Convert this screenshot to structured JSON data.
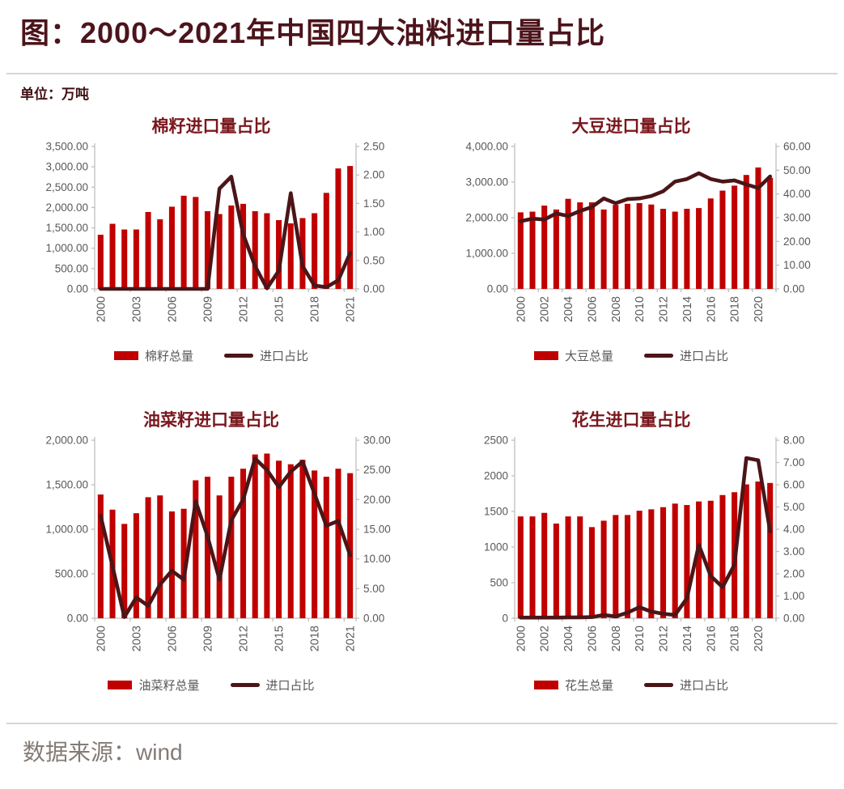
{
  "page": {
    "title": "图：2000～2021年中国四大油料进口量占比",
    "unit_label": "单位：万吨",
    "source_label": "数据来源：wind"
  },
  "colors": {
    "bar": "#C00000",
    "line": "#4C1518",
    "main_title": "#4C141B",
    "chart_title": "#7A171D",
    "axis_line": "#BFBFBF",
    "axis_text": "#595959",
    "legend_text": "#595959",
    "footer_text": "#847B76",
    "divider": "#D8D5D3"
  },
  "chart_data": [
    {
      "type": "bar+line",
      "title": "棉籽进口量占比",
      "categories": [
        "2000",
        "2001",
        "2002",
        "2003",
        "2004",
        "2005",
        "2006",
        "2007",
        "2008",
        "2009",
        "2010",
        "2011",
        "2012",
        "2013",
        "2014",
        "2015",
        "2016",
        "2017",
        "2018",
        "2019",
        "2020",
        "2021"
      ],
      "bar_series": {
        "name": "棉籽总量",
        "axis": "left",
        "values": [
          1330,
          1600,
          1460,
          1460,
          1890,
          1710,
          2020,
          2290,
          2260,
          1910,
          1840,
          2050,
          2090,
          1910,
          1860,
          1690,
          1610,
          1740,
          1860,
          2360,
          2960,
          3020
        ]
      },
      "line_series": {
        "name": "进口占比",
        "axis": "right",
        "values": [
          0.0,
          0.0,
          0.0,
          0.0,
          0.0,
          0.0,
          0.0,
          0.0,
          0.0,
          0.0,
          1.76,
          1.97,
          0.96,
          0.4,
          0.01,
          0.32,
          1.68,
          0.4,
          0.06,
          0.03,
          0.15,
          0.63
        ]
      },
      "left_axis": {
        "min": 0,
        "max": 3500,
        "step": 500,
        "format": "comma2"
      },
      "right_axis": {
        "min": 0,
        "max": 2.5,
        "step": 0.5,
        "format": "dp2"
      },
      "x_label_step": 3,
      "legend_position": "bottom",
      "grid": false
    },
    {
      "type": "bar+line",
      "title": "大豆进口量占比",
      "categories": [
        "2000",
        "2001",
        "2002",
        "2003",
        "2004",
        "2005",
        "2006",
        "2007",
        "2008",
        "2009",
        "2010",
        "2011",
        "2012",
        "2013",
        "2014",
        "2015",
        "2016",
        "2017",
        "2018",
        "2019",
        "2020",
        "2021"
      ],
      "bar_series": {
        "name": "大豆总量",
        "axis": "left",
        "values": [
          2150,
          2170,
          2340,
          2230,
          2530,
          2430,
          2430,
          2230,
          2360,
          2390,
          2410,
          2370,
          2250,
          2170,
          2250,
          2270,
          2540,
          2760,
          2900,
          3200,
          3410,
          3120
        ]
      },
      "line_series": {
        "name": "进口占比",
        "axis": "right",
        "values": [
          28.5,
          29.6,
          29.2,
          31.8,
          30.7,
          32.8,
          34.5,
          38.1,
          36.1,
          37.8,
          38.1,
          39.1,
          41.1,
          45.2,
          46.3,
          48.7,
          46.3,
          45.2,
          45.7,
          44.0,
          42.5,
          47.4
        ]
      },
      "left_axis": {
        "min": 0,
        "max": 4000,
        "step": 1000,
        "format": "comma2"
      },
      "right_axis": {
        "min": 0,
        "max": 60,
        "step": 10,
        "format": "dp2"
      },
      "x_label_step": 2,
      "legend_position": "bottom",
      "grid": false
    },
    {
      "type": "bar+line",
      "title": "油菜籽进口量占比",
      "categories": [
        "2000",
        "2001",
        "2002",
        "2003",
        "2004",
        "2005",
        "2006",
        "2007",
        "2008",
        "2009",
        "2010",
        "2011",
        "2012",
        "2013",
        "2014",
        "2015",
        "2016",
        "2017",
        "2018",
        "2019",
        "2020",
        "2021"
      ],
      "bar_series": {
        "name": "油菜籽总量",
        "axis": "left",
        "values": [
          1390,
          1220,
          1060,
          1180,
          1360,
          1380,
          1200,
          1230,
          1550,
          1590,
          1380,
          1590,
          1680,
          1840,
          1850,
          1770,
          1730,
          1780,
          1660,
          1590,
          1680,
          1630
        ]
      },
      "line_series": {
        "name": "进口占比",
        "axis": "right",
        "values": [
          17.3,
          8.8,
          0.2,
          3.5,
          2.1,
          5.7,
          8.0,
          6.5,
          19.7,
          13.8,
          6.5,
          16.5,
          20.0,
          26.9,
          25.0,
          22.1,
          24.7,
          26.4,
          21.0,
          15.6,
          16.4,
          10.6
        ]
      },
      "left_axis": {
        "min": 0,
        "max": 2000,
        "step": 500,
        "format": "comma2"
      },
      "right_axis": {
        "min": 0,
        "max": 30,
        "step": 5,
        "format": "dp2"
      },
      "x_label_step": 3,
      "legend_position": "bottom",
      "grid": false
    },
    {
      "type": "bar+line",
      "title": "花生进口量占比",
      "categories": [
        "2000",
        "2001",
        "2002",
        "2003",
        "2004",
        "2005",
        "2006",
        "2007",
        "2008",
        "2009",
        "2010",
        "2011",
        "2012",
        "2013",
        "2014",
        "2015",
        "2016",
        "2017",
        "2018",
        "2019",
        "2020",
        "2021"
      ],
      "bar_series": {
        "name": "花生总量",
        "axis": "left",
        "values": [
          1430,
          1430,
          1480,
          1330,
          1430,
          1430,
          1280,
          1370,
          1450,
          1450,
          1510,
          1530,
          1560,
          1610,
          1590,
          1640,
          1650,
          1730,
          1770,
          1880,
          1920,
          1900
        ]
      },
      "line_series": {
        "name": "进口占比",
        "axis": "right",
        "values": [
          0.03,
          0.03,
          0.03,
          0.03,
          0.04,
          0.04,
          0.05,
          0.15,
          0.08,
          0.25,
          0.5,
          0.3,
          0.2,
          0.15,
          0.9,
          3.3,
          1.9,
          1.4,
          2.4,
          7.2,
          7.1,
          3.9
        ]
      },
      "left_axis": {
        "min": 0,
        "max": 2500,
        "step": 500,
        "format": "int"
      },
      "right_axis": {
        "min": 0,
        "max": 8,
        "step": 1,
        "format": "dp2"
      },
      "x_label_step": 2,
      "legend_position": "bottom",
      "grid": false
    }
  ]
}
